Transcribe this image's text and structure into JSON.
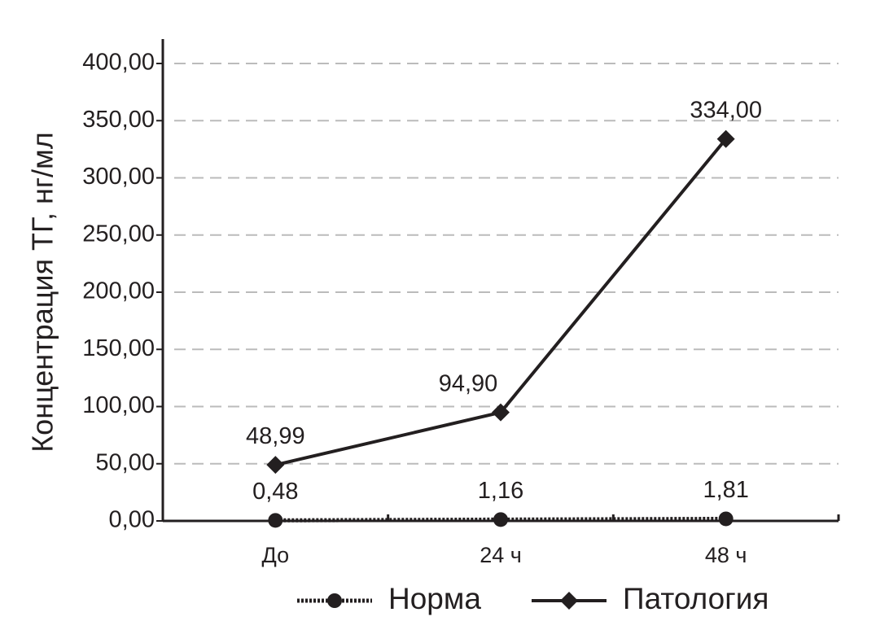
{
  "chart_data": {
    "type": "line",
    "ylabel": "Концентрация ТГ, нг/мл",
    "categories": [
      "До",
      "24 ч",
      "48 ч"
    ],
    "series": [
      {
        "name": "Норма",
        "color": "#231f20",
        "marker": "circle",
        "linestyle": "dotted",
        "values": [
          0.48,
          1.16,
          1.81
        ],
        "value_labels": [
          "0,48",
          "1,16",
          "1,81"
        ]
      },
      {
        "name": "Патология",
        "color": "#231f20",
        "marker": "diamond",
        "linestyle": "solid",
        "values": [
          48.99,
          94.9,
          334.0
        ],
        "value_labels": [
          "48,99",
          "94,90",
          "334,00"
        ]
      }
    ],
    "ylim": [
      0,
      400
    ],
    "yticks": [
      {
        "value": 0,
        "label": "0,00"
      },
      {
        "value": 50,
        "label": "50,00"
      },
      {
        "value": 100,
        "label": "100,00"
      },
      {
        "value": 150,
        "label": "150,00"
      },
      {
        "value": 200,
        "label": "200,00"
      },
      {
        "value": 250,
        "label": "250,00"
      },
      {
        "value": 300,
        "label": "300,00"
      },
      {
        "value": 350,
        "label": "350,00"
      },
      {
        "value": 400,
        "label": "400,00"
      }
    ],
    "grid": true,
    "legend": "bottom"
  }
}
